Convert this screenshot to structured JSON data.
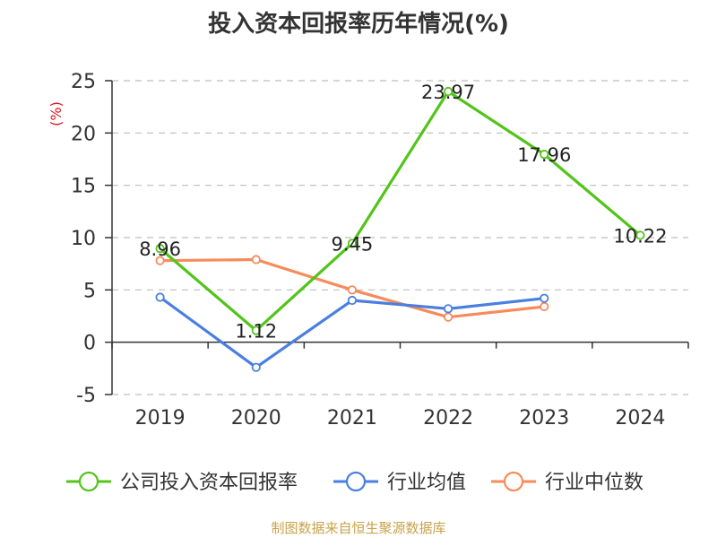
{
  "chart_data": {
    "type": "line",
    "title": "投入资本回报率历年情况(%)",
    "ylabel": "(%)",
    "categories": [
      "2019",
      "2020",
      "2021",
      "2022",
      "2023",
      "2024"
    ],
    "y_ticks": [
      "25",
      "20",
      "15",
      "10",
      "5",
      "0",
      "-5"
    ],
    "ylim": [
      -5,
      25
    ],
    "grid": true,
    "legend_position": "bottom",
    "series": [
      {
        "name": "公司投入资本回报率",
        "color": "#52c41a",
        "values": [
          8.96,
          1.12,
          9.45,
          23.97,
          17.96,
          10.22
        ],
        "labels": [
          "8.96",
          "1.12",
          "9.45",
          "23.97",
          "17.96",
          "10.22"
        ]
      },
      {
        "name": "行业均值",
        "color": "#4a7fe0",
        "values": [
          4.3,
          -2.4,
          4.0,
          3.2,
          4.2,
          null
        ]
      },
      {
        "name": "行业中位数",
        "color": "#f78b5a",
        "values": [
          7.8,
          7.9,
          5.0,
          2.4,
          3.4,
          null
        ]
      }
    ]
  },
  "source_note": "制图数据来自恒生聚源数据库"
}
